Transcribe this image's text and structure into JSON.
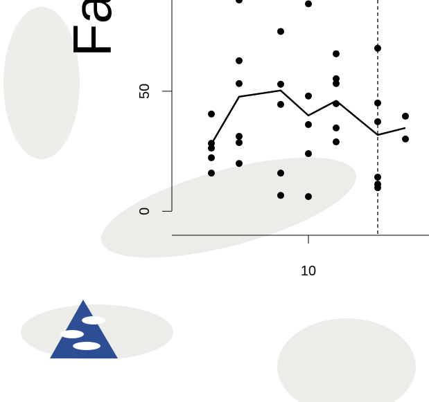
{
  "chart_data": {
    "type": "scatter",
    "title": "Fa",
    "points": {
      "color": "#000000",
      "x": [
        6.5,
        6.5,
        6.5,
        6.5,
        6.5,
        7.5,
        7.5,
        7.5,
        7.5,
        7.5,
        7.5,
        9,
        9,
        9,
        9,
        9,
        10,
        10,
        10,
        10,
        10,
        11,
        11,
        11,
        11,
        11,
        11,
        12.5,
        12.5,
        12.5,
        12.5,
        12.5,
        12.5,
        13.5,
        13.5
      ],
      "y": [
        40.5,
        28.3,
        26.3,
        22.3,
        15.9,
        88,
        62.7,
        53.2,
        31.2,
        28.6,
        19.9,
        74.9,
        52.9,
        44.5,
        15.9,
        6.6,
        86.4,
        48,
        36.1,
        24,
        6.1,
        65.6,
        55.2,
        53.2,
        44.8,
        34.7,
        28.9,
        67.9,
        45.1,
        37.3,
        14.2,
        11.3,
        9.8,
        39.6,
        30.1
      ]
    },
    "line": {
      "color": "#000000",
      "x": [
        6.5,
        7.5,
        9,
        10,
        11,
        12.5,
        13.5
      ],
      "y": [
        28,
        47.7,
        50.3,
        39.9,
        46,
        31.8,
        34.7
      ]
    },
    "vline": 12.5,
    "xlim": [
      5.075,
      14.35
    ],
    "xticks": [
      10
    ],
    "ylim": [
      -10,
      88
    ],
    "yticks": [
      0,
      50
    ]
  }
}
